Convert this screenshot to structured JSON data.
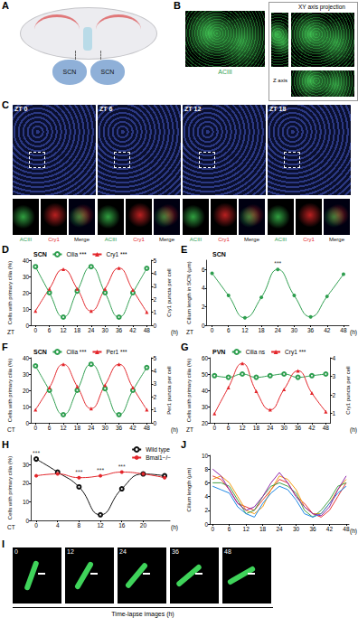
{
  "panels": {
    "A": {
      "label": "A",
      "texts": [
        "SCN",
        "SCN"
      ]
    },
    "B": {
      "label": "B",
      "stain": "ACIII",
      "inset_title": "XY axis projection",
      "axis_text": "Z axis"
    },
    "C": {
      "label": "C",
      "timepoints": [
        "ZT 0",
        "ZT 6",
        "ZT 12",
        "ZT 18"
      ],
      "channels": [
        "ACIII",
        "Cry1",
        "Merge"
      ]
    },
    "I": {
      "label": "I",
      "frames": [
        "0",
        "12",
        "24",
        "36",
        "48"
      ],
      "caption": "Time-lapse images (h)"
    }
  },
  "chart_data": [
    {
      "panel": "D",
      "type": "line",
      "title": "SCN",
      "xlabel": "ZT",
      "xunit": "(h)",
      "x": [
        0,
        6,
        12,
        18,
        24,
        30,
        36,
        42,
        48
      ],
      "xlim": [
        -2,
        50
      ],
      "xticks": [
        0,
        6,
        12,
        18,
        24,
        30,
        36,
        42,
        48
      ],
      "ylabel": "Cells with primary cilia (%)",
      "ylim": [
        0,
        40
      ],
      "yticks": [
        0,
        10,
        20,
        30,
        40
      ],
      "y2label": "Cry1 puncta per cell",
      "y2lim": [
        0,
        5
      ],
      "y2ticks": [
        0,
        1,
        2,
        3,
        4,
        5
      ],
      "legend": "top",
      "series": [
        {
          "name": "Cilia",
          "significance": "***",
          "color": "#2e9e4f",
          "marker": "open_circle",
          "values": [
            36,
            20,
            5,
            21,
            36,
            20,
            5,
            20,
            35
          ]
        },
        {
          "name": "Cry1",
          "significance": "***",
          "color": "#e3262b",
          "marker": "triangle",
          "axis": "y2",
          "values": [
            1.1,
            2.8,
            4.3,
            2.8,
            1.1,
            2.8,
            4.4,
            2.7,
            1.0
          ]
        }
      ]
    },
    {
      "panel": "E",
      "type": "line",
      "title": "SCN",
      "xlabel": "ZT",
      "xunit": "(h)",
      "x": [
        0,
        6,
        12,
        18,
        24,
        30,
        36,
        42,
        48
      ],
      "xlim": [
        -2,
        50
      ],
      "xticks": [
        0,
        6,
        12,
        18,
        24,
        30,
        36,
        42,
        48
      ],
      "ylabel": "Cilium length in SCN (μm)",
      "ylim": [
        0,
        7
      ],
      "yticks": [
        0,
        2,
        4,
        6
      ],
      "significance": [
        null,
        null,
        null,
        null,
        "***",
        null,
        null,
        null,
        null
      ],
      "series": [
        {
          "color": "#2e9e4f",
          "marker": "circle",
          "values": [
            5.6,
            3.2,
            0.8,
            3.0,
            6.0,
            3.2,
            0.9,
            3.1,
            5.5
          ]
        }
      ]
    },
    {
      "panel": "F",
      "type": "line",
      "title": "SCN",
      "xlabel": "CT",
      "xunit": "(h)",
      "x": [
        0,
        6,
        12,
        18,
        24,
        30,
        36,
        42,
        48
      ],
      "xlim": [
        -2,
        50
      ],
      "xticks": [
        0,
        6,
        12,
        18,
        24,
        30,
        36,
        42,
        48
      ],
      "ylabel": "Cells with primary cilia (%)",
      "ylim": [
        0,
        40
      ],
      "yticks": [
        0,
        10,
        20,
        30,
        40
      ],
      "y2label": "Per1 puncta per cell",
      "y2lim": [
        0,
        5
      ],
      "y2ticks": [
        0,
        1,
        2,
        3,
        4,
        5
      ],
      "legend": "top",
      "series": [
        {
          "name": "Cilia",
          "significance": "***",
          "color": "#2e9e4f",
          "marker": "open_circle",
          "values": [
            35,
            20,
            5,
            20,
            36,
            21,
            5,
            20,
            34
          ]
        },
        {
          "name": "Per1",
          "significance": "***",
          "color": "#e3262b",
          "marker": "triangle",
          "axis": "y2",
          "values": [
            1.0,
            2.7,
            4.5,
            2.8,
            1.1,
            2.9,
            4.5,
            2.7,
            1.0
          ]
        }
      ]
    },
    {
      "panel": "G",
      "type": "line",
      "title": "PVN",
      "xlabel": "ZT",
      "xunit": "(h)",
      "x": [
        0,
        6,
        12,
        18,
        24,
        30,
        36,
        42,
        48
      ],
      "xlim": [
        -2,
        50
      ],
      "xticks": [
        0,
        6,
        12,
        18,
        24,
        30,
        36,
        42,
        48
      ],
      "ylabel": "Cells with primary cilia (%)",
      "ylim": [
        20,
        60
      ],
      "yticks": [
        20,
        30,
        40,
        50,
        60
      ],
      "y2label": "Cry1 puncta per cell",
      "y2lim": [
        0.5,
        4
      ],
      "y2ticks": [
        1,
        2,
        3,
        4
      ],
      "legend": "top",
      "series": [
        {
          "name": "Cilia",
          "significance": "ns",
          "color": "#2e9e4f",
          "marker": "open_circle",
          "values": [
            49,
            48,
            50,
            48,
            49,
            50,
            48,
            49,
            50
          ]
        },
        {
          "name": "Cry1",
          "significance": "***",
          "color": "#e3262b",
          "marker": "triangle",
          "axis": "y2",
          "values": [
            1.0,
            2.4,
            3.7,
            2.2,
            1.2,
            2.3,
            3.3,
            2.1,
            1.1
          ]
        }
      ]
    },
    {
      "panel": "H",
      "type": "line",
      "xlabel": "CT",
      "xunit": "(h)",
      "x": [
        0,
        4,
        8,
        12,
        16,
        20,
        24
      ],
      "xlim": [
        -1,
        25
      ],
      "xticks": [
        0,
        4,
        8,
        12,
        16,
        20
      ],
      "ylabel": "Cells with primary cilia (%)",
      "ylim": [
        0,
        35
      ],
      "yticks": [
        0,
        10,
        20,
        30
      ],
      "legend": "top-right",
      "significance": [
        "***",
        null,
        "***",
        "***",
        "***",
        null,
        null
      ],
      "series": [
        {
          "name": "Wild type",
          "color": "#111111",
          "marker": "open_circle",
          "values": [
            33,
            26,
            18,
            3,
            17,
            25,
            24
          ]
        },
        {
          "name": "Bmal1−/−",
          "color": "#e3262b",
          "marker": "circle",
          "values": [
            24,
            25,
            23,
            24,
            26,
            25,
            23
          ]
        }
      ]
    },
    {
      "panel": "J",
      "type": "line",
      "xunit": "(h)",
      "x": [
        0,
        3,
        6,
        9,
        12,
        15,
        18,
        21,
        24,
        27,
        30,
        33,
        36,
        39,
        42,
        45,
        48
      ],
      "xlim": [
        -1,
        49
      ],
      "xticks": [
        0,
        6,
        12,
        18,
        24,
        30,
        36,
        42,
        48
      ],
      "ylabel": "Cilium length (μm)",
      "ylim": [
        0,
        10
      ],
      "yticks": [
        0,
        2,
        4,
        6,
        8,
        10
      ],
      "series": [
        {
          "color": "#e53935",
          "marker": "none",
          "values": [
            7,
            6.5,
            5,
            3,
            2.5,
            2,
            3.5,
            5,
            6.5,
            6,
            4,
            3,
            1.5,
            1,
            2,
            4,
            6
          ]
        },
        {
          "color": "#f39c12",
          "marker": "none",
          "values": [
            6.5,
            7,
            6,
            4,
            2,
            1.5,
            2.5,
            5,
            7,
            6.5,
            5,
            2.5,
            1.5,
            1.5,
            3,
            5,
            6.5
          ]
        },
        {
          "color": "#43a047",
          "marker": "none",
          "values": [
            6,
            6,
            5.5,
            3.5,
            1.5,
            2,
            4,
            5.5,
            6,
            5.5,
            4.5,
            2,
            1,
            2,
            3.5,
            5.5,
            6
          ]
        },
        {
          "color": "#1e88e5",
          "marker": "none",
          "values": [
            5.5,
            5,
            4.5,
            2.5,
            1.5,
            1,
            3,
            4.5,
            5.5,
            5,
            3.5,
            1.5,
            1,
            1.5,
            3,
            4.5,
            5.5
          ]
        },
        {
          "color": "#8e24aa",
          "marker": "none",
          "values": [
            8,
            7,
            5,
            3,
            2,
            2.5,
            4,
            6,
            7.5,
            6,
            4,
            2.5,
            1.5,
            1.2,
            2.5,
            5,
            7
          ]
        }
      ]
    }
  ]
}
